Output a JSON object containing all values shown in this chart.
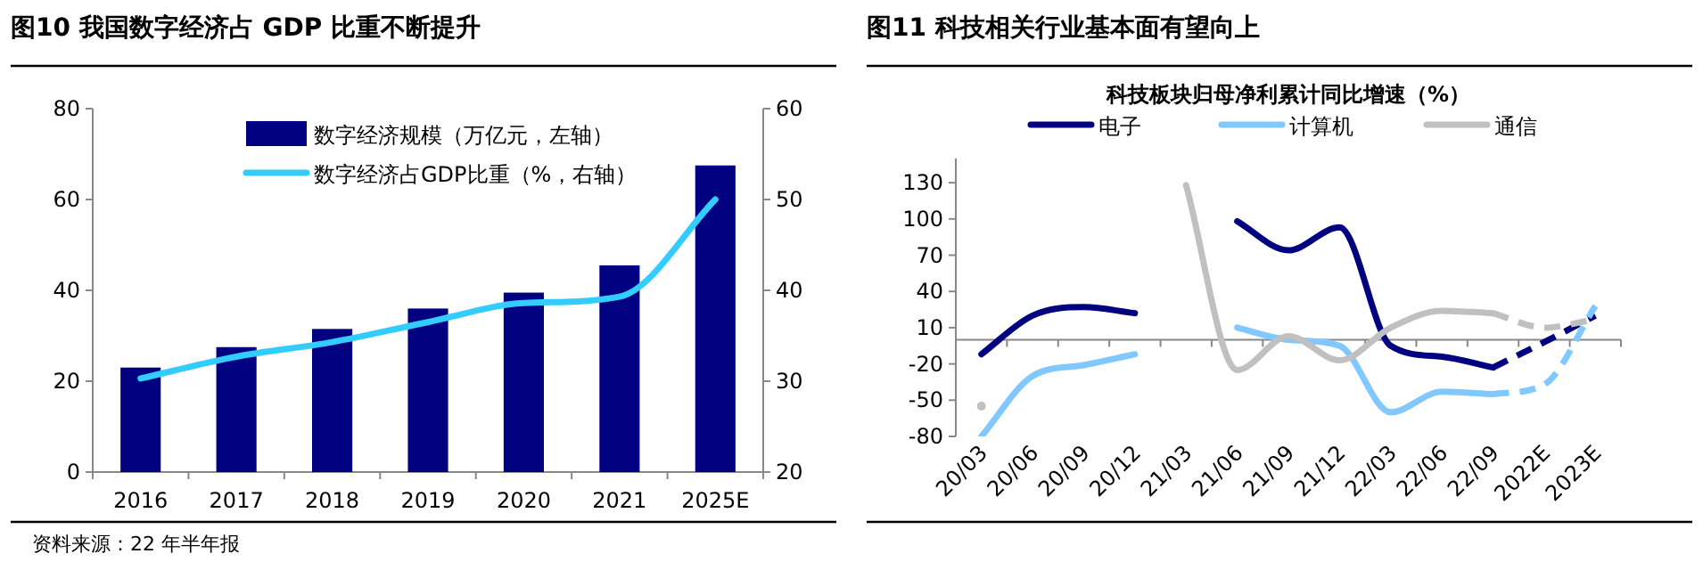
{
  "chart_data": [
    {
      "type": "bar",
      "title": "图10 我国数字经济占 GDP 比重不断提升",
      "categories": [
        "2016",
        "2017",
        "2018",
        "2019",
        "2020",
        "2021",
        "2025E"
      ],
      "series": [
        {
          "name": "数字经济规模（万亿元，左轴）",
          "color": "#000080",
          "values": [
            23,
            27.5,
            31.5,
            36,
            39.5,
            45.5,
            67.5
          ]
        },
        {
          "name": "数字经济占GDP比重（%，右轴）",
          "type": "line",
          "axis": "y2",
          "color": "#33ccff",
          "values": [
            30.3,
            32.7,
            34.3,
            36.5,
            38.6,
            39.3,
            50
          ]
        }
      ],
      "ylim": [
        0,
        80
      ],
      "yticks": [
        0,
        20,
        40,
        60,
        80
      ],
      "y2lim": [
        20,
        60
      ],
      "y2ticks": [
        20,
        30,
        40,
        50,
        60
      ],
      "legend": "top",
      "grid": false,
      "marker": "none",
      "annotations": [
        "资料来源：22 年半年报"
      ]
    },
    {
      "type": "line",
      "title": "图11 科技相关行业基本面有望向上",
      "subtitle": "科技板块归母净利累计同比增速（%）",
      "categories": [
        "20/03",
        "20/06",
        "20/09",
        "20/12",
        "21/03",
        "21/06",
        "21/09",
        "21/12",
        "22/03",
        "22/06",
        "22/09",
        "2022E",
        "2023E"
      ],
      "series": [
        {
          "name": "电子",
          "color": "#000080",
          "values": [
            -12,
            20,
            27,
            22,
            null,
            98,
            74,
            93,
            -5,
            -14,
            -23,
            null,
            null
          ]
        },
        {
          "name": "计算机",
          "color": "#80c8ff",
          "values": [
            -80,
            -30,
            -21,
            -12,
            null,
            10,
            0,
            -5,
            -60,
            -43,
            -45,
            null,
            null
          ]
        },
        {
          "name": "通信",
          "color": "#c0c0c0",
          "values": [
            -55,
            null,
            null,
            null,
            128,
            -25,
            3,
            -17,
            10,
            24,
            22,
            null,
            null
          ]
        },
        {
          "color": "#000080",
          "line_style": "dashed",
          "values": [
            null,
            null,
            null,
            null,
            null,
            null,
            null,
            null,
            null,
            null,
            -23,
            -2,
            20
          ]
        },
        {
          "color": "#80c8ff",
          "line_style": "dashed",
          "values": [
            null,
            null,
            null,
            null,
            null,
            null,
            null,
            null,
            null,
            null,
            -45,
            -37,
            28
          ]
        },
        {
          "color": "#c0c0c0",
          "line_style": "dashed",
          "values": [
            null,
            null,
            null,
            null,
            null,
            null,
            null,
            null,
            null,
            null,
            22,
            10,
            17
          ]
        }
      ],
      "ylim": [
        -80,
        150
      ],
      "yticks": [
        -80,
        -50,
        -20,
        10,
        40,
        70,
        100,
        130
      ],
      "legend": "top",
      "grid": false,
      "marker": "none"
    }
  ]
}
